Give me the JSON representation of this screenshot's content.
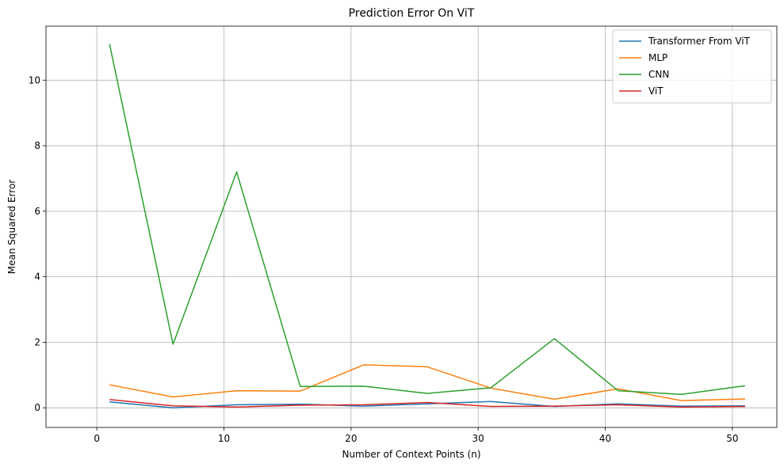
{
  "chart_data": {
    "type": "line",
    "title": "Prediction Error On ViT",
    "xlabel": "Number of Context Points (n)",
    "ylabel": "Mean Squared Error",
    "xlim": [
      -4.0,
      53.5
    ],
    "ylim": [
      -0.6,
      11.65
    ],
    "xticks": [
      0,
      10,
      20,
      30,
      40,
      50
    ],
    "yticks": [
      0,
      2,
      4,
      6,
      8,
      10
    ],
    "grid": true,
    "legend_position": "top-right",
    "x": [
      1,
      6,
      11,
      16,
      21,
      26,
      31,
      36,
      41,
      46,
      51
    ],
    "series": [
      {
        "name": "Transformer From ViT",
        "color": "#1f77b4",
        "values": [
          0.18,
          0.0,
          0.09,
          0.11,
          0.05,
          0.12,
          0.19,
          0.04,
          0.12,
          0.05,
          0.06
        ]
      },
      {
        "name": "MLP",
        "color": "#ff7f0e",
        "values": [
          0.7,
          0.33,
          0.52,
          0.51,
          1.31,
          1.25,
          0.6,
          0.26,
          0.58,
          0.22,
          0.27
        ]
      },
      {
        "name": "CNN",
        "color": "#2ca02c",
        "values": [
          11.1,
          1.94,
          7.2,
          0.65,
          0.66,
          0.44,
          0.61,
          2.11,
          0.52,
          0.41,
          0.67
        ]
      },
      {
        "name": "ViT",
        "color": "#d62728",
        "values": [
          0.25,
          0.06,
          0.02,
          0.08,
          0.09,
          0.16,
          0.04,
          0.05,
          0.09,
          0.02,
          0.04
        ]
      }
    ]
  }
}
